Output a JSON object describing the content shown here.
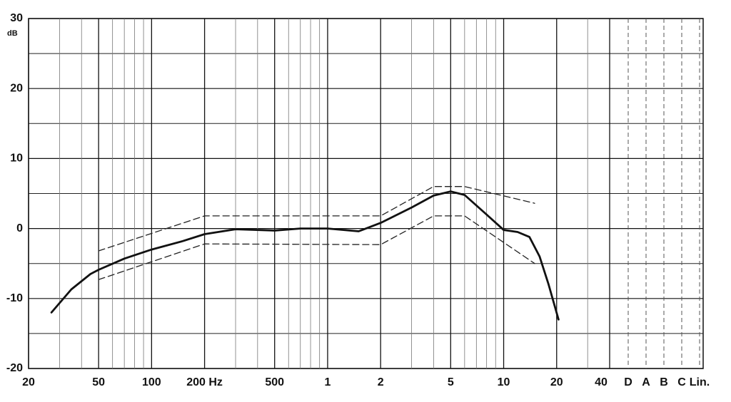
{
  "chart_data": {
    "type": "line",
    "y_unit": "dB",
    "xscale": "log",
    "xlim": [
      20,
      40000
    ],
    "xticks": [
      20,
      50,
      100,
      {
        "value": 200,
        "label": "200 Hz"
      },
      500,
      {
        "value": 1000,
        "label": "1"
      },
      {
        "value": 2000,
        "label": "2"
      },
      {
        "value": 5000,
        "label": "5"
      },
      {
        "value": 10000,
        "label": "10"
      },
      {
        "value": 20000,
        "label": "20"
      },
      {
        "value": 40000,
        "label": "40"
      }
    ],
    "xminor": [
      30,
      40,
      60,
      70,
      80,
      90,
      300,
      400,
      600,
      700,
      800,
      900,
      3000,
      4000,
      6000,
      7000,
      8000,
      9000,
      30000
    ],
    "extra_columns": [
      "D",
      "A",
      "B",
      "C",
      "Lin."
    ],
    "ylim": [
      -20,
      30
    ],
    "yticks": [
      30,
      20,
      10,
      0,
      -10,
      -20
    ],
    "yminor": [
      25,
      15,
      5,
      -5,
      -15
    ],
    "grid": true,
    "series": [
      {
        "color": "#111111",
        "style": "solid",
        "x": [
          27,
          35,
          45,
          50,
          70,
          100,
          150,
          200,
          300,
          500,
          700,
          1000,
          1500,
          2000,
          3000,
          4000,
          5000,
          6000,
          8000,
          10000,
          12000,
          14000,
          16000,
          18000,
          20500
        ],
        "values": [
          -12,
          -8.7,
          -6.5,
          -5.9,
          -4.3,
          -3,
          -1.8,
          -0.8,
          -0.1,
          -0.3,
          0,
          0,
          -0.4,
          0.8,
          3,
          4.7,
          5.3,
          4.8,
          2,
          -0.2,
          -0.5,
          -1.2,
          -4,
          -8,
          -13
        ]
      },
      {
        "color": "#222222",
        "style": "dashed",
        "x": [
          50,
          200,
          2000,
          4000,
          6000,
          15000
        ],
        "values": [
          -3.2,
          1.8,
          1.8,
          6,
          6,
          3.6
        ]
      },
      {
        "color": "#222222",
        "style": "dashed",
        "x": [
          50,
          200,
          2000,
          4000,
          6000,
          15000
        ],
        "values": [
          -7.3,
          -2.2,
          -2.3,
          1.8,
          1.8,
          -5
        ]
      }
    ]
  }
}
